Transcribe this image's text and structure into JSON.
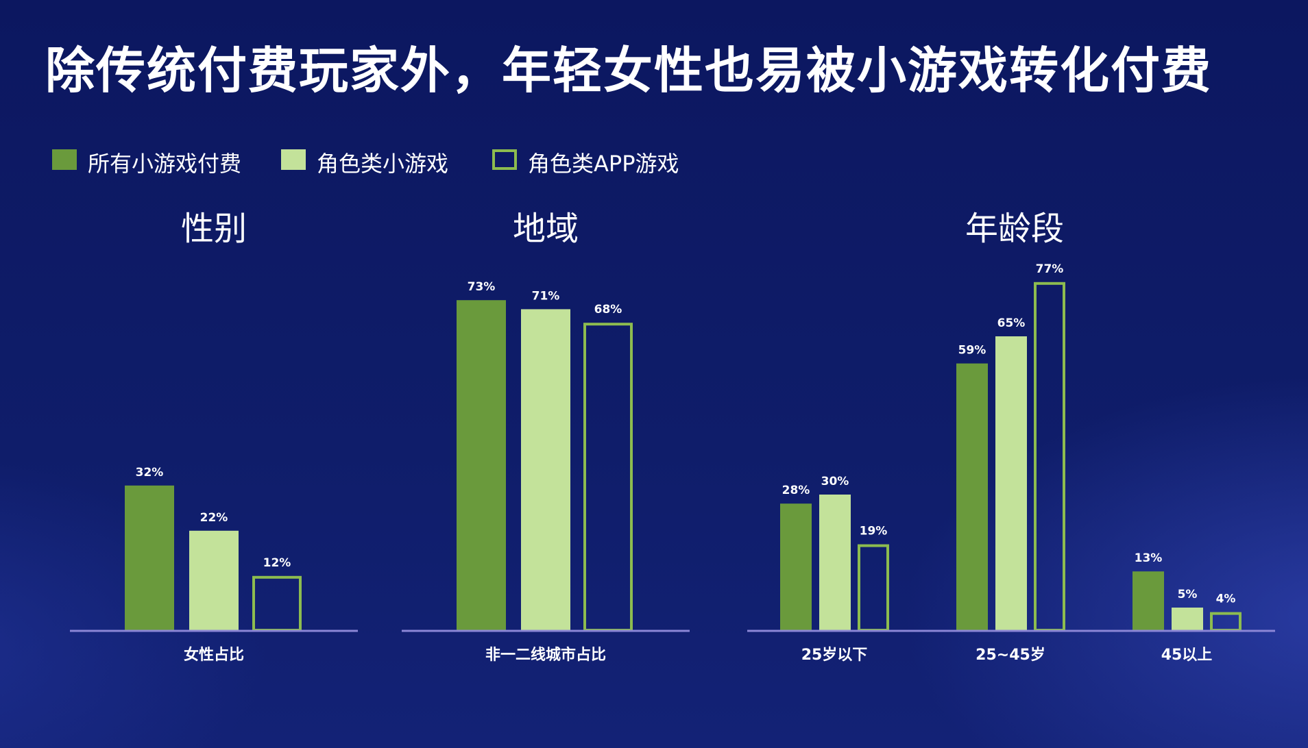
{
  "title": "除传统付费玩家外，年轻女性也易被小游戏转化付费",
  "colors": {
    "all_paid": "#6a9a3c",
    "role_mini": "#c3e29a",
    "role_app_outline": "#8dbc4f",
    "axis": "#8b86d6",
    "value_label": "#ffffff"
  },
  "legend": [
    {
      "label": "所有小游戏付费",
      "style": "solid-dark"
    },
    {
      "label": "角色类小游戏",
      "style": "solid-light"
    },
    {
      "label": "角色类APP游戏",
      "style": "outline"
    }
  ],
  "chart_data": [
    {
      "type": "bar",
      "title": "性别",
      "categories": [
        "女性占比"
      ],
      "series": [
        {
          "name": "所有小游戏付费",
          "values": [
            32
          ]
        },
        {
          "name": "角色类小游戏",
          "values": [
            22
          ]
        },
        {
          "name": "角色类APP游戏",
          "values": [
            12
          ]
        }
      ],
      "value_labels": [
        [
          "32%"
        ],
        [
          "22%"
        ],
        [
          "12%"
        ]
      ],
      "ylim": [
        0,
        100
      ]
    },
    {
      "type": "bar",
      "title": "地域",
      "categories": [
        "非一二线城市占比"
      ],
      "series": [
        {
          "name": "所有小游戏付费",
          "values": [
            73
          ]
        },
        {
          "name": "角色类小游戏",
          "values": [
            71
          ]
        },
        {
          "name": "角色类APP游戏",
          "values": [
            68
          ]
        }
      ],
      "value_labels": [
        [
          "73%"
        ],
        [
          "71%"
        ],
        [
          "68%"
        ]
      ],
      "ylim": [
        0,
        100
      ]
    },
    {
      "type": "bar",
      "title": "年龄段",
      "categories": [
        "25岁以下",
        "25~45岁",
        "45以上"
      ],
      "series": [
        {
          "name": "所有小游戏付费",
          "values": [
            28,
            59,
            13
          ]
        },
        {
          "name": "角色类小游戏",
          "values": [
            30,
            65,
            5
          ]
        },
        {
          "name": "角色类APP游戏",
          "values": [
            19,
            77,
            4
          ]
        }
      ],
      "value_labels": [
        [
          "28%",
          "59%",
          "13%"
        ],
        [
          "30%",
          "65%",
          "5%"
        ],
        [
          "19%",
          "77%",
          "4%"
        ]
      ],
      "ylim": [
        0,
        100
      ]
    }
  ]
}
